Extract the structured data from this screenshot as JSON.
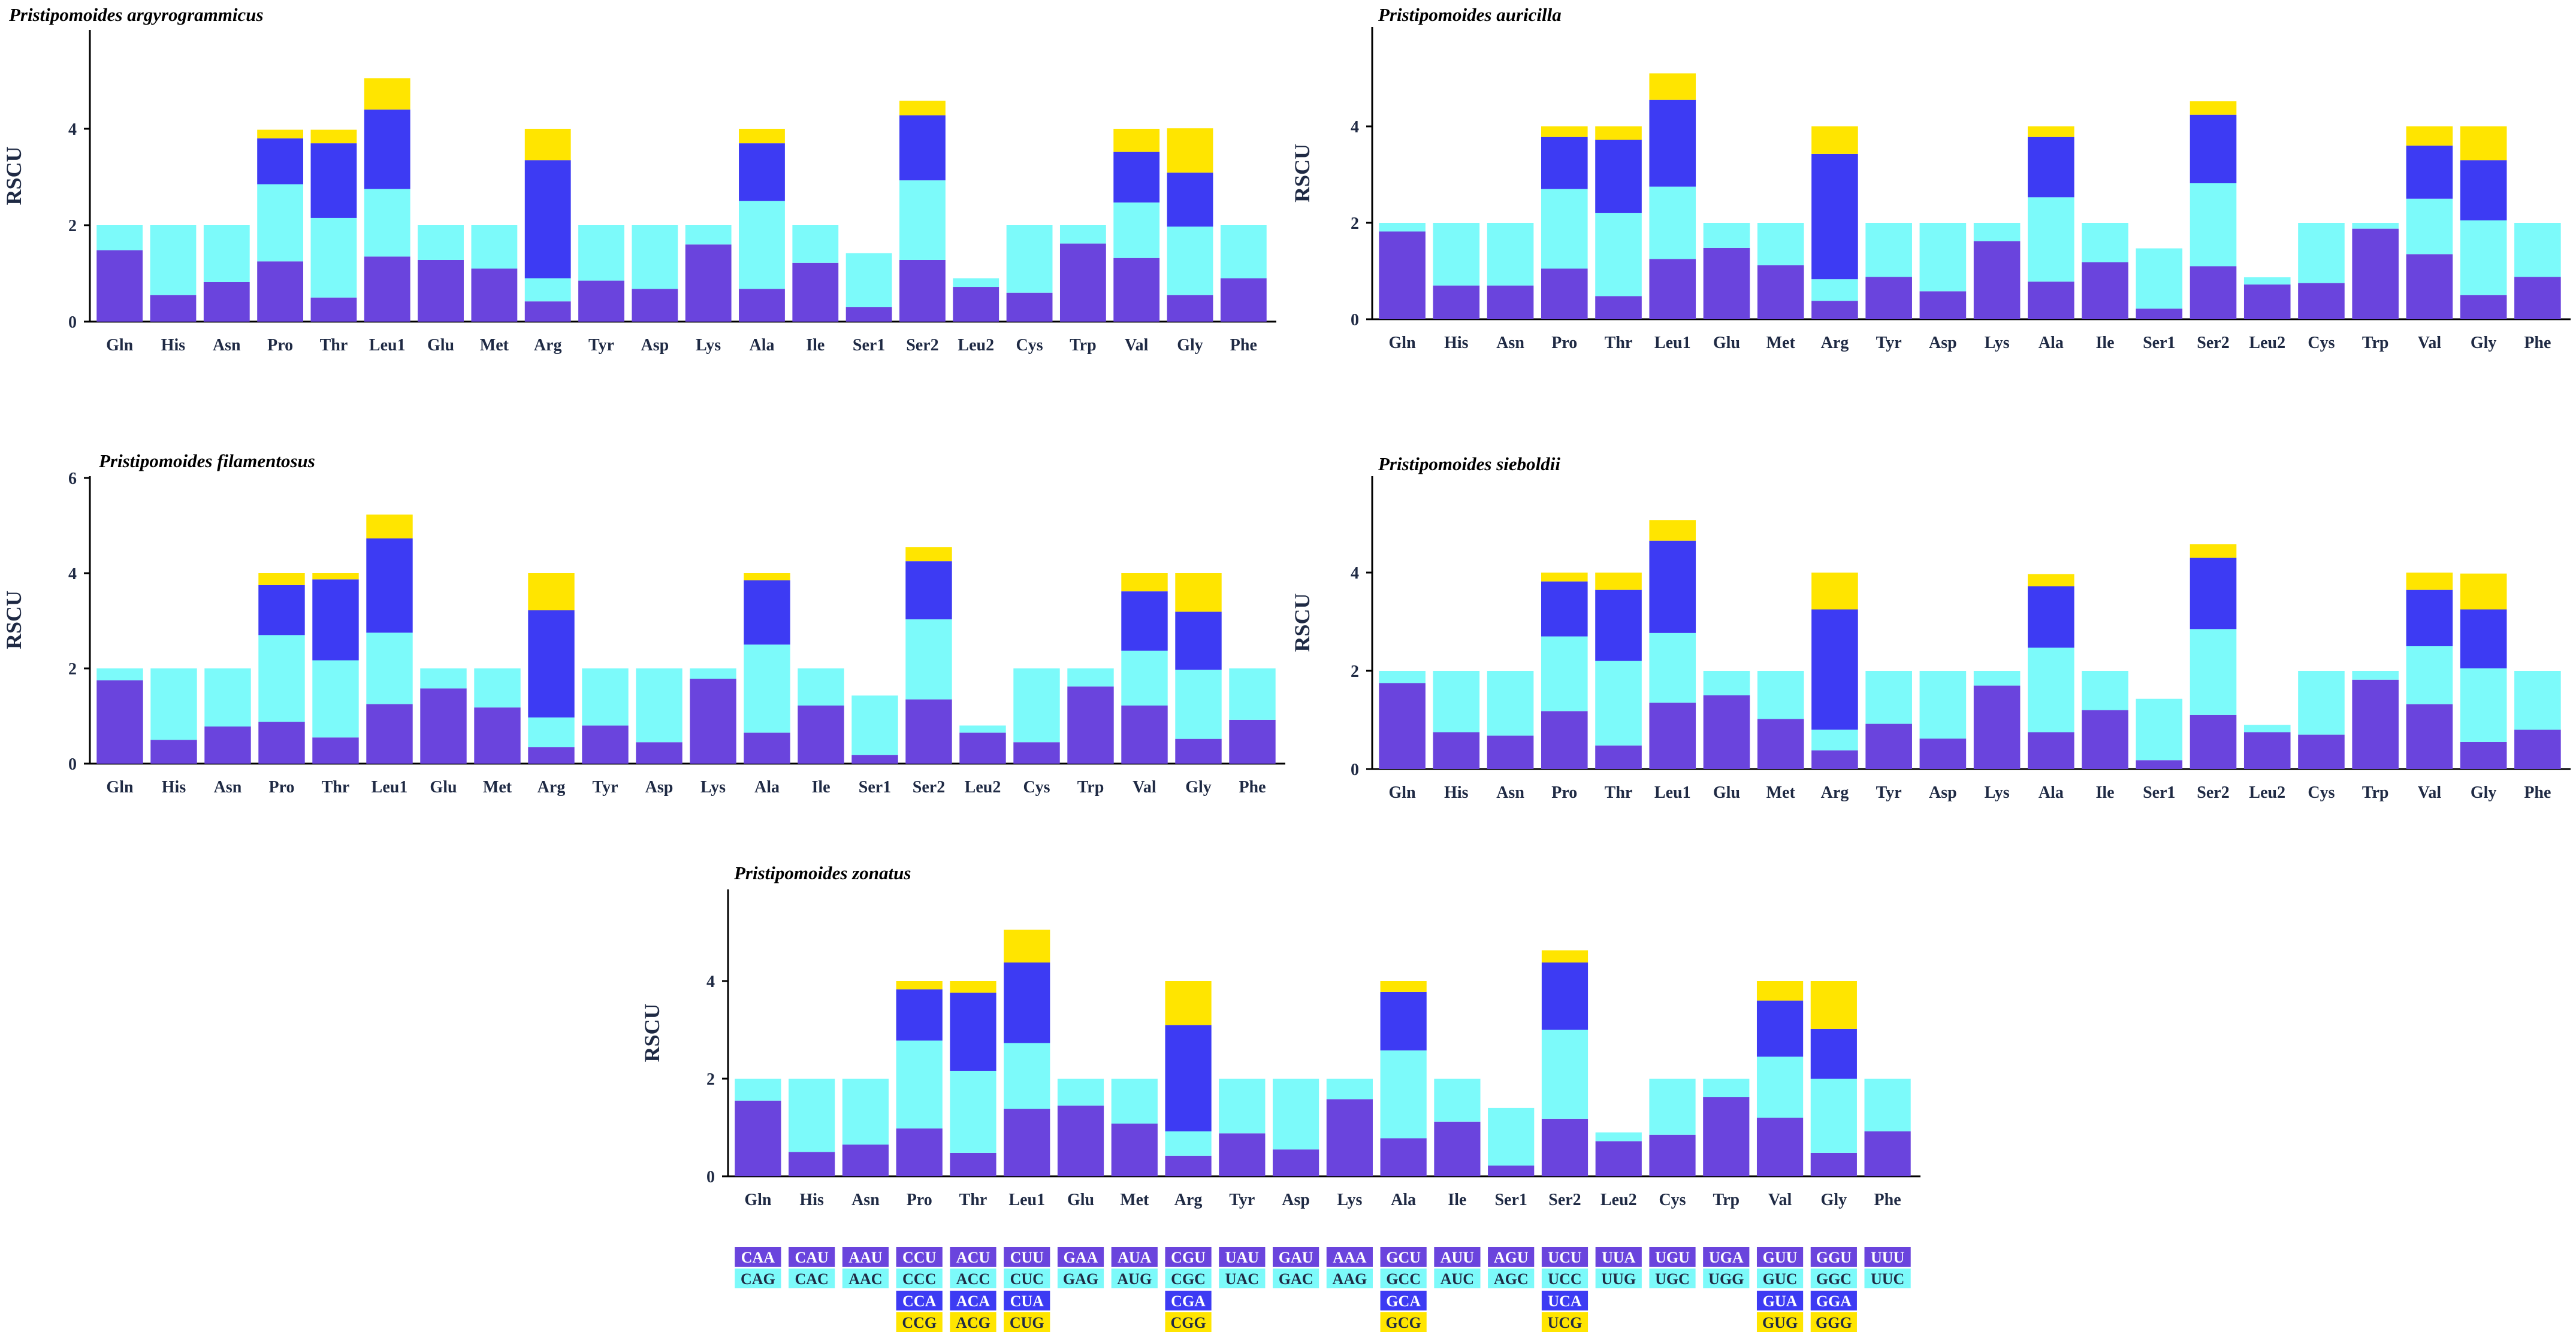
{
  "colors": {
    "c1": "#6A44DD",
    "c2": "#7CFAFA",
    "c3": "#3D3BF3",
    "c4": "#FFE500",
    "axis": "#000000",
    "label": "#1F2A44"
  },
  "codons": {
    "rows": [
      [
        "CAA",
        "CAU",
        "AAU",
        "CCU",
        "ACU",
        "CUU",
        "GAA",
        "AUA",
        "CGU",
        "UAU",
        "GAU",
        "AAA",
        "GCU",
        "AUU",
        "AGU",
        "UCU",
        "UUA",
        "UGU",
        "UGA",
        "GUU",
        "GGU",
        "UUU"
      ],
      [
        "CAG",
        "CAC",
        "AAC",
        "CCC",
        "ACC",
        "CUC",
        "GAG",
        "AUG",
        "CGC",
        "UAC",
        "GAC",
        "AAG",
        "GCC",
        "AUC",
        "AGC",
        "UCC",
        "UUG",
        "UGC",
        "UGG",
        "GUC",
        "GGC",
        "UUC"
      ],
      [
        "",
        "",
        "",
        "CCA",
        "ACA",
        "CUA",
        "",
        "",
        "CGA",
        "",
        "",
        "",
        "GCA",
        "",
        "",
        "UCA",
        "",
        "",
        "",
        "GUA",
        "GGA",
        ""
      ],
      [
        "",
        "",
        "",
        "CCG",
        "ACG",
        "CUG",
        "",
        "",
        "CGG",
        "",
        "",
        "",
        "GCG",
        "",
        "",
        "UCG",
        "",
        "",
        "",
        "GUG",
        "GGG",
        ""
      ]
    ]
  },
  "chart_data": [
    {
      "type": "bar",
      "title": "Pristipomoides argyrogrammicus",
      "ylabel": "RSCU",
      "ylim": [
        0,
        6
      ],
      "yticks": [
        "0",
        "2",
        "4"
      ],
      "categories": [
        "Gln",
        "His",
        "Asn",
        "Pro",
        "Thr",
        "Leu1",
        "Glu",
        "Met",
        "Arg",
        "Tyr",
        "Asp",
        "Lys",
        "Ala",
        "Ile",
        "Ser1",
        "Ser2",
        "Leu2",
        "Cys",
        "Trp",
        "Val",
        "Gly",
        "Phe"
      ],
      "series": [
        {
          "name": "codon 1",
          "values": [
            1.48,
            0.55,
            0.82,
            1.25,
            0.5,
            1.35,
            1.28,
            1.1,
            0.42,
            0.85,
            0.68,
            1.6,
            0.68,
            1.22,
            0.3,
            1.28,
            0.72,
            0.6,
            1.62,
            1.32,
            0.55,
            0.9
          ]
        },
        {
          "name": "codon 2",
          "values": [
            0.52,
            1.45,
            1.18,
            1.6,
            1.65,
            1.4,
            0.72,
            0.9,
            0.48,
            1.15,
            1.32,
            0.4,
            1.82,
            0.78,
            1.12,
            1.65,
            0.18,
            1.4,
            0.38,
            1.15,
            1.42,
            1.1
          ]
        },
        {
          "name": "codon 3",
          "values": [
            0,
            0,
            0,
            0.95,
            1.55,
            1.65,
            0,
            0,
            2.45,
            0,
            0,
            0,
            1.2,
            0,
            0,
            1.35,
            0,
            0,
            0,
            1.05,
            1.12,
            0
          ]
        },
        {
          "name": "codon 4",
          "values": [
            0,
            0,
            0,
            0.18,
            0.28,
            0.65,
            0,
            0,
            0.65,
            0,
            0,
            0,
            0.3,
            0,
            0,
            0.3,
            0,
            0,
            0,
            0.48,
            0.92,
            0
          ]
        }
      ]
    },
    {
      "type": "bar",
      "title": "Pristipomoides auricilla",
      "ylabel": "RSCU",
      "ylim": [
        0,
        6
      ],
      "yticks": [
        "0",
        "2",
        "4"
      ],
      "categories": [
        "Gln",
        "His",
        "Asn",
        "Pro",
        "Thr",
        "Leu1",
        "Glu",
        "Met",
        "Arg",
        "Tyr",
        "Asp",
        "Lys",
        "Ala",
        "Ile",
        "Ser1",
        "Ser2",
        "Leu2",
        "Cys",
        "Trp",
        "Val",
        "Gly",
        "Phe"
      ],
      "series": [
        {
          "name": "codon 1",
          "values": [
            1.82,
            0.7,
            0.7,
            1.05,
            0.48,
            1.25,
            1.48,
            1.12,
            0.38,
            0.88,
            0.58,
            1.62,
            0.78,
            1.18,
            0.22,
            1.1,
            0.72,
            0.75,
            1.88,
            1.35,
            0.5,
            0.88
          ]
        },
        {
          "name": "codon 2",
          "values": [
            0.18,
            1.3,
            1.3,
            1.65,
            1.72,
            1.5,
            0.52,
            0.88,
            0.45,
            1.12,
            1.42,
            0.38,
            1.75,
            0.82,
            1.25,
            1.72,
            0.15,
            1.25,
            0.12,
            1.15,
            1.55,
            1.12
          ]
        },
        {
          "name": "codon 3",
          "values": [
            0,
            0,
            0,
            1.08,
            1.52,
            1.8,
            0,
            0,
            2.6,
            0,
            0,
            0,
            1.25,
            0,
            0,
            1.42,
            0,
            0,
            0,
            1.1,
            1.25,
            0
          ]
        },
        {
          "name": "codon 4",
          "values": [
            0,
            0,
            0,
            0.22,
            0.28,
            0.55,
            0,
            0,
            0.57,
            0,
            0,
            0,
            0.22,
            0,
            0,
            0.28,
            0,
            0,
            0,
            0.4,
            0.7,
            0
          ]
        }
      ]
    },
    {
      "type": "bar",
      "title": "Pristipomoides filamentosus",
      "ylabel": "RSCU",
      "ylim": [
        0,
        6
      ],
      "yticks": [
        "0",
        "2",
        "4",
        "6"
      ],
      "categories": [
        "Gln",
        "His",
        "Asn",
        "Pro",
        "Thr",
        "Leu1",
        "Glu",
        "Met",
        "Arg",
        "Tyr",
        "Asp",
        "Lys",
        "Ala",
        "Ile",
        "Ser1",
        "Ser2",
        "Leu2",
        "Cys",
        "Trp",
        "Val",
        "Gly",
        "Phe"
      ],
      "series": [
        {
          "name": "codon 1",
          "values": [
            1.75,
            0.5,
            0.78,
            0.88,
            0.55,
            1.25,
            1.58,
            1.18,
            0.35,
            0.8,
            0.45,
            1.78,
            0.65,
            1.22,
            0.18,
            1.35,
            0.65,
            0.45,
            1.62,
            1.22,
            0.52,
            0.92
          ]
        },
        {
          "name": "codon 2",
          "values": [
            0.25,
            1.5,
            1.22,
            1.82,
            1.62,
            1.5,
            0.42,
            0.82,
            0.62,
            1.2,
            1.55,
            0.22,
            1.85,
            0.78,
            1.25,
            1.68,
            0.15,
            1.55,
            0.38,
            1.15,
            1.45,
            1.08
          ]
        },
        {
          "name": "codon 3",
          "values": [
            0,
            0,
            0,
            1.05,
            1.7,
            1.98,
            0,
            0,
            2.25,
            0,
            0,
            0,
            1.35,
            0,
            0,
            1.22,
            0,
            0,
            0,
            1.25,
            1.22,
            0
          ]
        },
        {
          "name": "codon 4",
          "values": [
            0,
            0,
            0,
            0.25,
            0.13,
            0.5,
            0,
            0,
            0.78,
            0,
            0,
            0,
            0.15,
            0,
            0,
            0.3,
            0,
            0,
            0,
            0.38,
            0.81,
            0
          ]
        }
      ]
    },
    {
      "type": "bar",
      "title": "Pristipomoides sieboldii",
      "ylabel": "RSCU",
      "ylim": [
        0,
        6
      ],
      "yticks": [
        "0",
        "2",
        "4"
      ],
      "categories": [
        "Gln",
        "His",
        "Asn",
        "Pro",
        "Thr",
        "Leu1",
        "Glu",
        "Met",
        "Arg",
        "Tyr",
        "Asp",
        "Lys",
        "Ala",
        "Ile",
        "Ser1",
        "Ser2",
        "Leu2",
        "Cys",
        "Trp",
        "Val",
        "Gly",
        "Phe"
      ],
      "series": [
        {
          "name": "codon 1",
          "values": [
            1.75,
            0.75,
            0.68,
            1.18,
            0.48,
            1.35,
            1.5,
            1.02,
            0.38,
            0.92,
            0.62,
            1.7,
            0.75,
            1.2,
            0.18,
            1.1,
            0.75,
            0.7,
            1.82,
            1.32,
            0.55,
            0.8
          ]
        },
        {
          "name": "codon 2",
          "values": [
            0.25,
            1.25,
            1.32,
            1.52,
            1.72,
            1.42,
            0.5,
            0.98,
            0.42,
            1.08,
            1.38,
            0.3,
            1.72,
            0.8,
            1.25,
            1.75,
            0.15,
            1.3,
            0.18,
            1.18,
            1.5,
            1.2
          ]
        },
        {
          "name": "codon 3",
          "values": [
            0,
            0,
            0,
            1.12,
            1.45,
            1.88,
            0,
            0,
            2.45,
            0,
            0,
            0,
            1.25,
            0,
            0,
            1.45,
            0,
            0,
            0,
            1.15,
            1.2,
            0
          ]
        },
        {
          "name": "codon 4",
          "values": [
            0,
            0,
            0,
            0.18,
            0.35,
            0.42,
            0,
            0,
            0.75,
            0,
            0,
            0,
            0.25,
            0,
            0,
            0.28,
            0,
            0,
            0,
            0.35,
            0.73,
            0
          ]
        }
      ]
    },
    {
      "type": "bar",
      "title": "Pristipomoides zonatus",
      "ylabel": "RSCU",
      "ylim": [
        0,
        6
      ],
      "yticks": [
        "0",
        "2",
        "4"
      ],
      "categories": [
        "Gln",
        "His",
        "Asn",
        "Pro",
        "Thr",
        "Leu1",
        "Glu",
        "Met",
        "Arg",
        "Tyr",
        "Asp",
        "Lys",
        "Ala",
        "Ile",
        "Ser1",
        "Ser2",
        "Leu2",
        "Cys",
        "Trp",
        "Val",
        "Gly",
        "Phe"
      ],
      "series": [
        {
          "name": "codon 1",
          "values": [
            1.55,
            0.5,
            0.65,
            0.98,
            0.48,
            1.38,
            1.45,
            1.08,
            0.42,
            0.88,
            0.55,
            1.58,
            0.78,
            1.12,
            0.22,
            1.18,
            0.72,
            0.85,
            1.62,
            1.2,
            0.48,
            0.92
          ]
        },
        {
          "name": "codon 2",
          "values": [
            0.45,
            1.5,
            1.35,
            1.8,
            1.68,
            1.35,
            0.55,
            0.92,
            0.5,
            1.12,
            1.45,
            0.42,
            1.8,
            0.88,
            1.18,
            1.82,
            0.18,
            1.15,
            0.38,
            1.25,
            1.52,
            1.08
          ]
        },
        {
          "name": "codon 3",
          "values": [
            0,
            0,
            0,
            1.05,
            1.6,
            1.65,
            0,
            0,
            2.18,
            0,
            0,
            0,
            1.2,
            0,
            0,
            1.38,
            0,
            0,
            0,
            1.15,
            1.02,
            0
          ]
        },
        {
          "name": "codon 4",
          "values": [
            0,
            0,
            0,
            0.17,
            0.24,
            0.67,
            0,
            0,
            0.9,
            0,
            0,
            0,
            0.22,
            0,
            0,
            0.25,
            0,
            0,
            0,
            0.4,
            0.98,
            0
          ]
        }
      ]
    }
  ]
}
